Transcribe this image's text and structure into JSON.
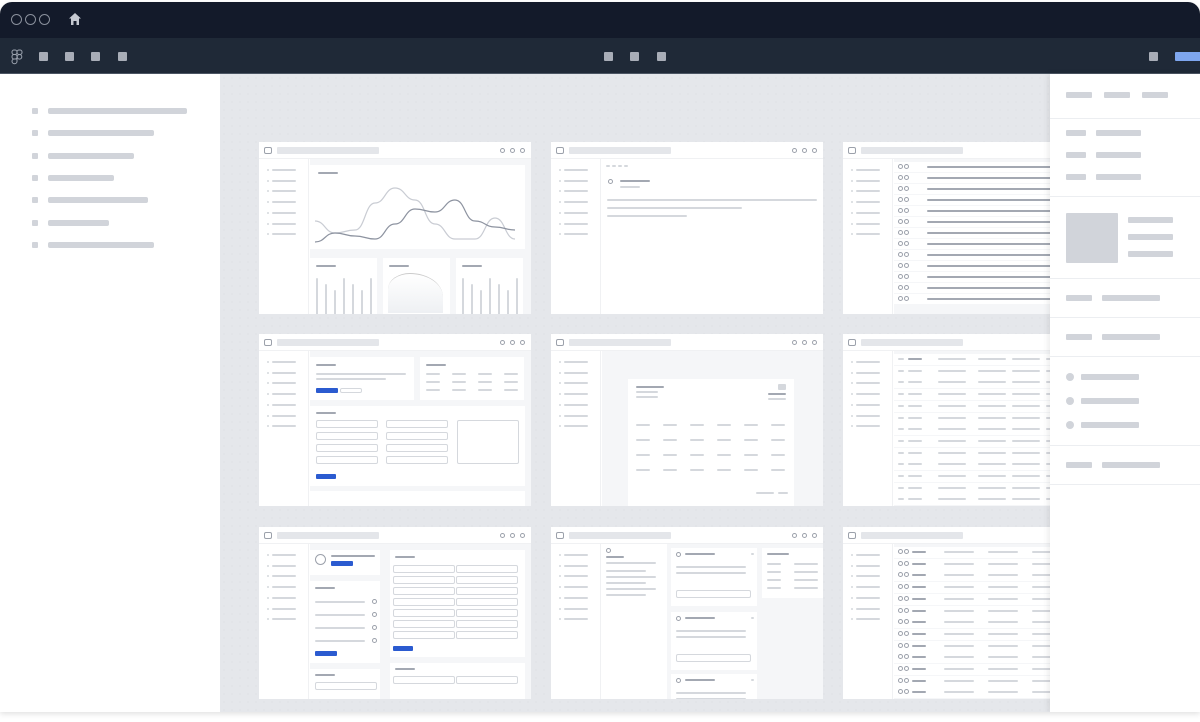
{
  "window": {
    "title_bar_color": "#131a2a",
    "toolbar_color": "#1f2937",
    "canvas_color": "#e5e7eb",
    "accent_color": "#2b5bd0",
    "share_button_color": "#7ea6ee",
    "traffic_lights": [
      "close-icon",
      "minimize-icon",
      "maximize-icon"
    ],
    "home_icon": "home-icon"
  },
  "toolbar": {
    "logo_icon": "figma-logo-icon",
    "left_tools": [
      "move-tool-icon",
      "frame-tool-icon",
      "shape-tool-icon",
      "pen-tool-icon"
    ],
    "center_tools": [
      "comment-tool-icon",
      "component-tool-icon",
      "hand-tool-icon"
    ],
    "right_tools": [
      "present-icon",
      "share-button"
    ]
  },
  "frame_header_icons": [
    "layout-icon",
    "bell-icon",
    "grid-icon",
    "user-icon"
  ],
  "chart_data": {
    "type": "line",
    "series": [
      {
        "values": [
          40,
          20,
          25,
          70,
          95,
          75,
          35,
          10,
          10,
          45,
          10
        ]
      },
      {
        "values": [
          5,
          20,
          15,
          10,
          35,
          60,
          55,
          75,
          40,
          30,
          25
        ]
      }
    ]
  }
}
